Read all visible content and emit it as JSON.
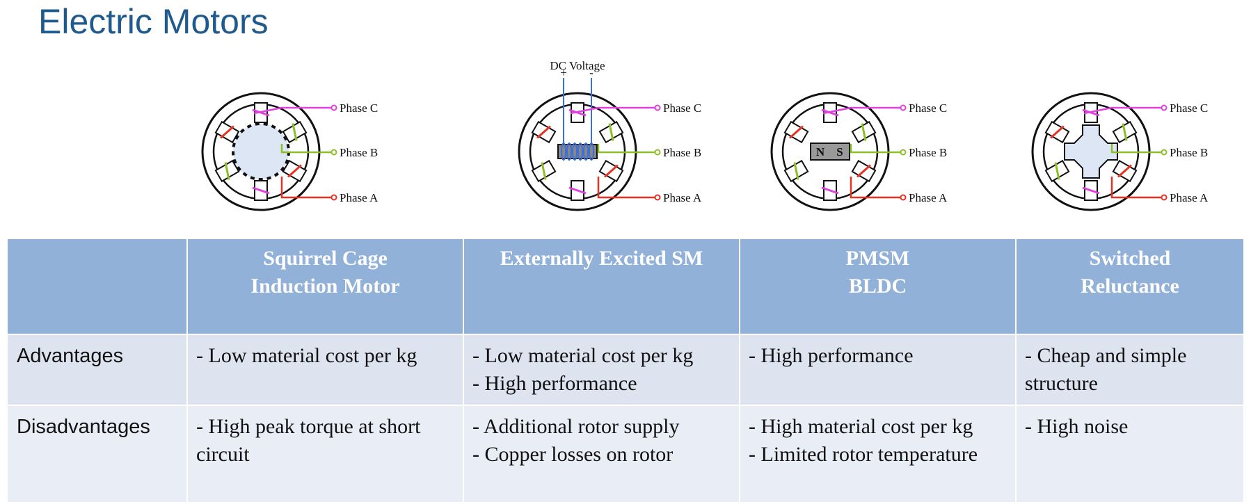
{
  "title": "Electric Motors",
  "diagrams": [
    {
      "phases": [
        "Phase C",
        "Phase B",
        "Phase A"
      ]
    },
    {
      "supply": "DC Voltage",
      "plus": "+",
      "minus": "-",
      "phases": [
        "Phase C",
        "Phase B",
        "Phase A"
      ]
    },
    {
      "poles": [
        "N",
        "S"
      ],
      "phases": [
        "Phase C",
        "Phase B",
        "Phase A"
      ]
    },
    {
      "phases": [
        "Phase C",
        "Phase B",
        "Phase A"
      ]
    }
  ],
  "table": {
    "header": [
      [
        "Squirrel Cage",
        "Induction Motor"
      ],
      [
        "Externally Excited SM"
      ],
      [
        "PMSM",
        "BLDC"
      ],
      [
        "Switched",
        "Reluctance"
      ]
    ],
    "rows": [
      {
        "label": "Advantages",
        "cells": [
          [
            "- Low material cost per kg"
          ],
          [
            "- Low material cost per kg",
            "- High performance"
          ],
          [
            "- High performance"
          ],
          [
            "- Cheap and simple structure"
          ]
        ]
      },
      {
        "label": "Disadvantages",
        "cells": [
          [
            "- High peak torque at short circuit"
          ],
          [
            "- Additional rotor supply",
            "- Copper losses on rotor"
          ],
          [
            "- High material cost per kg",
            "- Limited rotor temperature"
          ],
          [
            "- High noise"
          ]
        ]
      }
    ]
  }
}
